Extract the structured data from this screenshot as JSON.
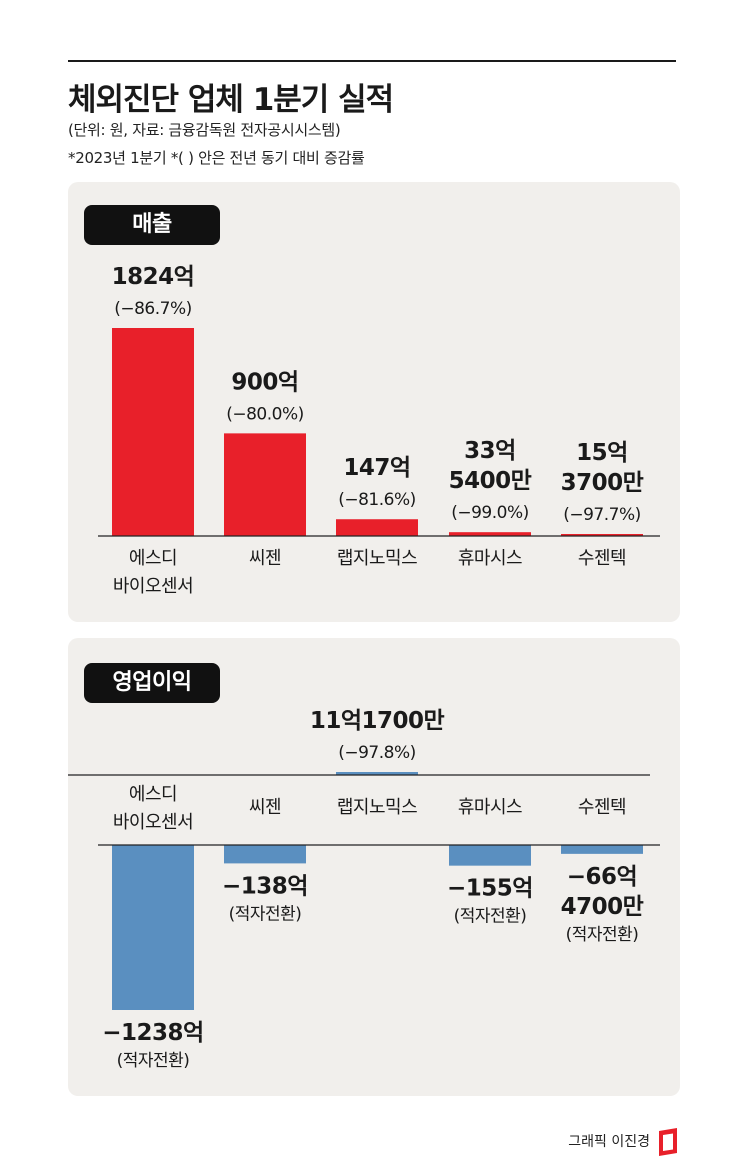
{
  "header": {
    "title": "체외진단 업체 1분기 실적",
    "note_unit": "(단위: 원, 자료: 금융감독원 전자공시시스템)",
    "note_period": "*2023년 1분기   *(  ) 안은 전년 동기 대비 증감률"
  },
  "credit": "그래픽 이진경",
  "colors": {
    "sales_bar": "#e8202a",
    "op_bar": "#5a8fc0",
    "panel": "#f1efec",
    "tag": "#111111"
  },
  "chart_data": [
    {
      "type": "bar",
      "tag": "매출",
      "unit": "억원",
      "categories": [
        "에스디 바이오센서",
        "씨젠",
        "랩지노믹스",
        "휴마시스",
        "수젠텍"
      ],
      "category_lines": [
        [
          "에스디",
          "바이오센서"
        ],
        [
          "씨젠"
        ],
        [
          "랩지노믹스"
        ],
        [
          "휴마시스"
        ],
        [
          "수젠텍"
        ]
      ],
      "values": [
        1824,
        900,
        147,
        33.54,
        15.37
      ],
      "value_labels": [
        [
          "1824억"
        ],
        [
          "900억"
        ],
        [
          "147억"
        ],
        [
          "33억",
          "5400만"
        ],
        [
          "15억",
          "3700만"
        ]
      ],
      "change_labels": [
        "(−86.7%)",
        "(−80.0%)",
        "(−81.6%)",
        "(−99.0%)",
        "(−97.7%)"
      ],
      "ylim": [
        0,
        1824
      ]
    },
    {
      "type": "bar",
      "tag": "영업이익",
      "unit": "억원",
      "categories": [
        "에스디 바이오센서",
        "씨젠",
        "랩지노믹스",
        "휴마시스",
        "수젠텍"
      ],
      "category_lines": [
        [
          "에스디",
          "바이오센서"
        ],
        [
          "씨젠"
        ],
        [
          "랩지노믹스"
        ],
        [
          "휴마시스"
        ],
        [
          "수젠텍"
        ]
      ],
      "values": [
        -1238,
        -138,
        11.17,
        -155,
        -66.47
      ],
      "value_labels": [
        [
          "−1238억"
        ],
        [
          "−138억"
        ],
        [
          "11억1700만"
        ],
        [
          "−155억"
        ],
        [
          "−66억",
          "4700만"
        ]
      ],
      "change_labels": [
        "(적자전환)",
        "(적자전환)",
        "(−97.8%)",
        "(적자전환)",
        "(적자전환)"
      ],
      "ylim": [
        -1238,
        11.17
      ]
    }
  ]
}
